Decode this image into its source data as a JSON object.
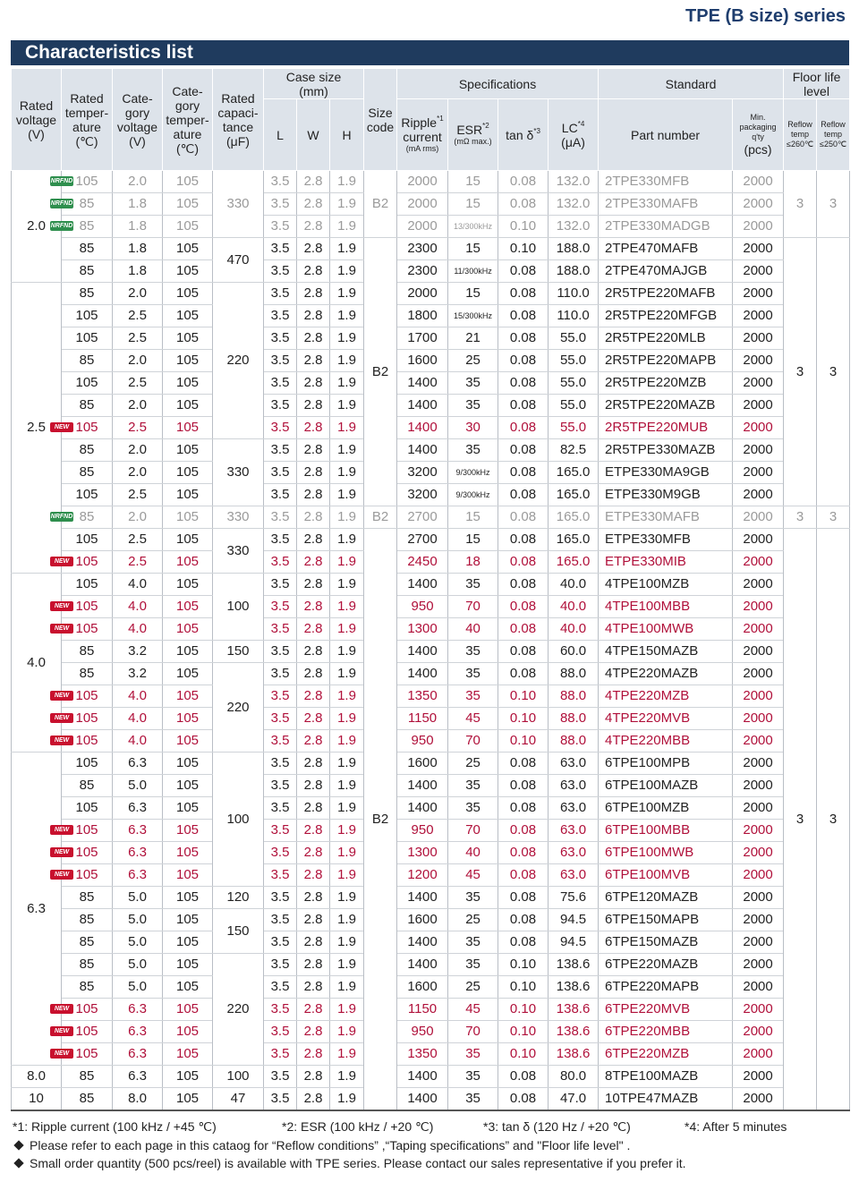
{
  "header": {
    "series": "TPE (B size) series",
    "section": "Characteristics list"
  },
  "table": {
    "head": [
      [
        {
          "text": "Rated\nvoltage\n(V)",
          "rowspan": 2
        },
        {
          "text": "Rated\ntemper-\nature\n(℃)",
          "rowspan": 2
        },
        {
          "text": "Cate-\ngory\nvoltage\n(V)",
          "rowspan": 2
        },
        {
          "text": "Cate-\ngory\ntemper-\nature\n(℃)",
          "rowspan": 2
        },
        {
          "text": "Rated\ncapaci-\ntance\n(μF)",
          "rowspan": 2
        },
        {
          "text": "Case size\n(mm)",
          "colspan": 3
        },
        {
          "text": "Size\ncode",
          "rowspan": 2
        },
        {
          "text": "Specifications",
          "colspan": 4
        },
        {
          "text": "Standard",
          "colspan": 2
        },
        {
          "text": "Floor life\nlevel",
          "colspan": 2
        }
      ],
      [
        {
          "text": "L"
        },
        {
          "text": "W"
        },
        {
          "text": "H"
        },
        {
          "text": "Ripple",
          "sup": "*1",
          "after": "current",
          "unit": "(mA rms)"
        },
        {
          "text": "ESR",
          "sup": "*2",
          "unit": "(mΩ max.)"
        },
        {
          "text": "tan δ",
          "sup": "*3"
        },
        {
          "text": "LC",
          "sup": "*4",
          "after": "(μA)"
        },
        {
          "text": "Part number"
        },
        {
          "unit": "Min.\npackaging\nq'ty",
          "after": "(pcs)"
        },
        {
          "unit": "Reflow\ntemp\n≤260℃"
        },
        {
          "unit": "Reflow\ntemp\n≤250℃"
        }
      ]
    ],
    "rows": [
      {
        "badge": {
          "text": "NRFND",
          "color": "#2f8f4e"
        },
        "color": "#9a9a9a",
        "cells": [
          {
            "text": "2.0",
            "span": 5
          },
          "105",
          "2.0",
          "105",
          {
            "text": "330",
            "span": 3,
            "color": "#9a9a9a"
          },
          "3.5",
          "2.8",
          "1.9",
          {
            "text": "B2",
            "span": 3,
            "color": "#9a9a9a"
          },
          "2000",
          "15",
          "0.08",
          "132.0",
          "2TPE330MFB",
          "2000",
          {
            "text": "3",
            "span": 3,
            "color": "#9a9a9a"
          },
          {
            "text": "3",
            "span": 3,
            "color": "#9a9a9a"
          }
        ]
      },
      {
        "badge": {
          "text": "NRFND",
          "color": "#2f8f4e"
        },
        "color": "#9a9a9a",
        "cells": [
          "85",
          "1.8",
          "105",
          "3.5",
          "2.8",
          "1.9",
          "2000",
          "15",
          "0.08",
          "132.0",
          "2TPE330MAFB",
          "2000"
        ]
      },
      {
        "badge": {
          "text": "NRFND",
          "color": "#2f8f4e"
        },
        "color": "#9a9a9a",
        "cells": [
          "85",
          "1.8",
          "105",
          "3.5",
          "2.8",
          "1.9",
          "2000",
          "13/300kHz",
          "0.10",
          "132.0",
          "2TPE330MADGB",
          "2000"
        ]
      },
      {
        "cells": [
          "85",
          "1.8",
          "105",
          {
            "text": "470",
            "span": 2
          },
          "3.5",
          "2.8",
          "1.9",
          {
            "text": "B2",
            "span": 12
          },
          "2300",
          "15",
          "0.10",
          "188.0",
          "2TPE470MAFB",
          "2000",
          {
            "text": "3",
            "span": 12
          },
          {
            "text": "3",
            "span": 12
          }
        ]
      },
      {
        "cells": [
          "85",
          "1.8",
          "105",
          "3.5",
          "2.8",
          "1.9",
          "2300",
          "11/300kHz",
          "0.08",
          "188.0",
          "2TPE470MAJGB",
          "2000"
        ]
      },
      {
        "cells": [
          {
            "text": "2.5",
            "span": 13
          },
          "85",
          "2.0",
          "105",
          {
            "text": "220",
            "span": 7
          },
          "3.5",
          "2.8",
          "1.9",
          "2000",
          "15",
          "0.08",
          "110.0",
          "2R5TPE220MAFB",
          "2000"
        ]
      },
      {
        "cells": [
          "105",
          "2.5",
          "105",
          "3.5",
          "2.8",
          "1.9",
          "1800",
          "15/300kHz",
          "0.08",
          "110.0",
          "2R5TPE220MFGB",
          "2000"
        ]
      },
      {
        "cells": [
          "105",
          "2.5",
          "105",
          "3.5",
          "2.8",
          "1.9",
          "1700",
          "21",
          "0.08",
          "55.0",
          "2R5TPE220MLB",
          "2000"
        ]
      },
      {
        "cells": [
          "85",
          "2.0",
          "105",
          "3.5",
          "2.8",
          "1.9",
          "1600",
          "25",
          "0.08",
          "55.0",
          "2R5TPE220MAPB",
          "2000"
        ]
      },
      {
        "cells": [
          "105",
          "2.5",
          "105",
          "3.5",
          "2.8",
          "1.9",
          "1400",
          "35",
          "0.08",
          "55.0",
          "2R5TPE220MZB",
          "2000"
        ]
      },
      {
        "cells": [
          "85",
          "2.0",
          "105",
          "3.5",
          "2.8",
          "1.9",
          "1400",
          "35",
          "0.08",
          "55.0",
          "2R5TPE220MAZB",
          "2000"
        ]
      },
      {
        "badge": {
          "text": "NEW",
          "color": "#c8102e"
        },
        "color": "#b0103a",
        "cells": [
          "105",
          "2.5",
          "105",
          "3.5",
          "2.8",
          "1.9",
          "1400",
          "30",
          "0.08",
          "55.0",
          "2R5TPE220MUB",
          "2000"
        ]
      },
      {
        "cells": [
          "85",
          "2.0",
          "105",
          {
            "text": "330",
            "span": 3
          },
          "3.5",
          "2.8",
          "1.9",
          "1400",
          "35",
          "0.08",
          "82.5",
          "2R5TPE330MAZB",
          "2000"
        ]
      },
      {
        "cells": [
          "85",
          "2.0",
          "105",
          "3.5",
          "2.8",
          "1.9",
          "3200",
          "9/300kHz",
          "0.08",
          "165.0",
          "ETPE330MA9GB",
          "2000"
        ]
      },
      {
        "cells": [
          "105",
          "2.5",
          "105",
          "3.5",
          "2.8",
          "1.9",
          "3200",
          "9/300kHz",
          "0.08",
          "165.0",
          "ETPE330M9GB",
          "2000"
        ]
      },
      {
        "badge": {
          "text": "NRFND",
          "color": "#2f8f4e"
        },
        "color": "#9a9a9a",
        "cells": [
          "85",
          "2.0",
          "105",
          "330",
          "3.5",
          "2.8",
          "1.9",
          "B2",
          "2700",
          "15",
          "0.08",
          "165.0",
          "ETPE330MAFB",
          "2000",
          "3",
          "3"
        ]
      },
      {
        "cells": [
          "105",
          "2.5",
          "105",
          {
            "text": "330",
            "span": 2
          },
          "3.5",
          "2.8",
          "1.9",
          {
            "text": "B2",
            "span": 26
          },
          "2700",
          "15",
          "0.08",
          "165.0",
          "ETPE330MFB",
          "2000",
          {
            "text": "3",
            "span": 26
          },
          {
            "text": "3",
            "span": 26
          }
        ]
      },
      {
        "badge": {
          "text": "NEW",
          "color": "#c8102e"
        },
        "color": "#b0103a",
        "cells": [
          "105",
          "2.5",
          "105",
          "3.5",
          "2.8",
          "1.9",
          "2450",
          "18",
          "0.08",
          "165.0",
          "ETPE330MIB",
          "2000"
        ]
      },
      {
        "cells": [
          {
            "text": "4.0",
            "span": 8
          },
          "105",
          "4.0",
          "105",
          {
            "text": "100",
            "span": 3
          },
          "3.5",
          "2.8",
          "1.9",
          "1400",
          "35",
          "0.08",
          "40.0",
          "4TPE100MZB",
          "2000"
        ]
      },
      {
        "badge": {
          "text": "NEW",
          "color": "#c8102e"
        },
        "color": "#b0103a",
        "cells": [
          "105",
          "4.0",
          "105",
          "3.5",
          "2.8",
          "1.9",
          "950",
          "70",
          "0.08",
          "40.0",
          "4TPE100MBB",
          "2000"
        ]
      },
      {
        "badge": {
          "text": "NEW",
          "color": "#c8102e"
        },
        "color": "#b0103a",
        "cells": [
          "105",
          "4.0",
          "105",
          "3.5",
          "2.8",
          "1.9",
          "1300",
          "40",
          "0.08",
          "40.0",
          "4TPE100MWB",
          "2000"
        ]
      },
      {
        "cells": [
          "85",
          "3.2",
          "105",
          "150",
          "3.5",
          "2.8",
          "1.9",
          "1400",
          "35",
          "0.08",
          "60.0",
          "4TPE150MAZB",
          "2000"
        ]
      },
      {
        "cells": [
          "85",
          "3.2",
          "105",
          {
            "text": "220",
            "span": 4
          },
          "3.5",
          "2.8",
          "1.9",
          "1400",
          "35",
          "0.08",
          "88.0",
          "4TPE220MAZB",
          "2000"
        ]
      },
      {
        "badge": {
          "text": "NEW",
          "color": "#c8102e"
        },
        "color": "#b0103a",
        "cells": [
          "105",
          "4.0",
          "105",
          "3.5",
          "2.8",
          "1.9",
          "1350",
          "35",
          "0.10",
          "88.0",
          "4TPE220MZB",
          "2000"
        ]
      },
      {
        "badge": {
          "text": "NEW",
          "color": "#c8102e"
        },
        "color": "#b0103a",
        "cells": [
          "105",
          "4.0",
          "105",
          "3.5",
          "2.8",
          "1.9",
          "1150",
          "45",
          "0.10",
          "88.0",
          "4TPE220MVB",
          "2000"
        ]
      },
      {
        "badge": {
          "text": "NEW",
          "color": "#c8102e"
        },
        "color": "#b0103a",
        "cells": [
          "105",
          "4.0",
          "105",
          "3.5",
          "2.8",
          "1.9",
          "950",
          "70",
          "0.10",
          "88.0",
          "4TPE220MBB",
          "2000"
        ]
      },
      {
        "cells": [
          {
            "text": "6.3",
            "span": 14
          },
          "105",
          "6.3",
          "105",
          {
            "text": "100",
            "span": 6
          },
          "3.5",
          "2.8",
          "1.9",
          "1600",
          "25",
          "0.08",
          "63.0",
          "6TPE100MPB",
          "2000"
        ]
      },
      {
        "cells": [
          "85",
          "5.0",
          "105",
          "3.5",
          "2.8",
          "1.9",
          "1400",
          "35",
          "0.08",
          "63.0",
          "6TPE100MAZB",
          "2000"
        ]
      },
      {
        "cells": [
          "105",
          "6.3",
          "105",
          "3.5",
          "2.8",
          "1.9",
          "1400",
          "35",
          "0.08",
          "63.0",
          "6TPE100MZB",
          "2000"
        ]
      },
      {
        "badge": {
          "text": "NEW",
          "color": "#c8102e"
        },
        "color": "#b0103a",
        "cells": [
          "105",
          "6.3",
          "105",
          "3.5",
          "2.8",
          "1.9",
          "950",
          "70",
          "0.08",
          "63.0",
          "6TPE100MBB",
          "2000"
        ]
      },
      {
        "badge": {
          "text": "NEW",
          "color": "#c8102e"
        },
        "color": "#b0103a",
        "cells": [
          "105",
          "6.3",
          "105",
          "3.5",
          "2.8",
          "1.9",
          "1300",
          "40",
          "0.08",
          "63.0",
          "6TPE100MWB",
          "2000"
        ]
      },
      {
        "badge": {
          "text": "NEW",
          "color": "#c8102e"
        },
        "color": "#b0103a",
        "cells": [
          "105",
          "6.3",
          "105",
          "3.5",
          "2.8",
          "1.9",
          "1200",
          "45",
          "0.08",
          "63.0",
          "6TPE100MVB",
          "2000"
        ]
      },
      {
        "cells": [
          "85",
          "5.0",
          "105",
          "120",
          "3.5",
          "2.8",
          "1.9",
          "1400",
          "35",
          "0.08",
          "75.6",
          "6TPE120MAZB",
          "2000"
        ]
      },
      {
        "cells": [
          "85",
          "5.0",
          "105",
          {
            "text": "150",
            "span": 2
          },
          "3.5",
          "2.8",
          "1.9",
          "1600",
          "25",
          "0.08",
          "94.5",
          "6TPE150MAPB",
          "2000"
        ]
      },
      {
        "cells": [
          "85",
          "5.0",
          "105",
          "3.5",
          "2.8",
          "1.9",
          "1400",
          "35",
          "0.08",
          "94.5",
          "6TPE150MAZB",
          "2000"
        ]
      },
      {
        "cells": [
          "85",
          "5.0",
          "105",
          {
            "text": "220",
            "span": 5
          },
          "3.5",
          "2.8",
          "1.9",
          "1400",
          "35",
          "0.10",
          "138.6",
          "6TPE220MAZB",
          "2000"
        ]
      },
      {
        "cells": [
          "85",
          "5.0",
          "105",
          "3.5",
          "2.8",
          "1.9",
          "1600",
          "25",
          "0.10",
          "138.6",
          "6TPE220MAPB",
          "2000"
        ]
      },
      {
        "badge": {
          "text": "NEW",
          "color": "#c8102e"
        },
        "color": "#b0103a",
        "cells": [
          "105",
          "6.3",
          "105",
          "3.5",
          "2.8",
          "1.9",
          "1150",
          "45",
          "0.10",
          "138.6",
          "6TPE220MVB",
          "2000"
        ]
      },
      {
        "badge": {
          "text": "NEW",
          "color": "#c8102e"
        },
        "color": "#b0103a",
        "cells": [
          "105",
          "6.3",
          "105",
          "3.5",
          "2.8",
          "1.9",
          "950",
          "70",
          "0.10",
          "138.6",
          "6TPE220MBB",
          "2000"
        ]
      },
      {
        "badge": {
          "text": "NEW",
          "color": "#c8102e"
        },
        "color": "#b0103a",
        "cells": [
          "105",
          "6.3",
          "105",
          "3.5",
          "2.8",
          "1.9",
          "1350",
          "35",
          "0.10",
          "138.6",
          "6TPE220MZB",
          "2000"
        ]
      },
      {
        "cells": [
          "8.0",
          "85",
          "6.3",
          "105",
          "100",
          "3.5",
          "2.8",
          "1.9",
          "1400",
          "35",
          "0.08",
          "80.0",
          "8TPE100MAZB",
          "2000"
        ]
      },
      {
        "cells": [
          "10",
          "85",
          "8.0",
          "105",
          "47",
          "3.5",
          "2.8",
          "1.9",
          "1400",
          "35",
          "0.08",
          "47.0",
          "10TPE47MAZB",
          "2000"
        ]
      }
    ]
  },
  "footnotes": [
    "*1: Ripple current (100 kHz / +45 ℃)",
    "*2: ESR (100 kHz / +20 ℃)",
    "*3: tan δ (120 Hz / +20 ℃)",
    "*4: After 5 minutes"
  ],
  "notes": [
    "Please refer to each page in this cataog for “Reflow conditions” ,“Taping specifications” and \"Floor life level\" .",
    "Small order quantity (500 pcs/reel) is available with TPE series. Please contact our sales representative if you prefer it."
  ]
}
